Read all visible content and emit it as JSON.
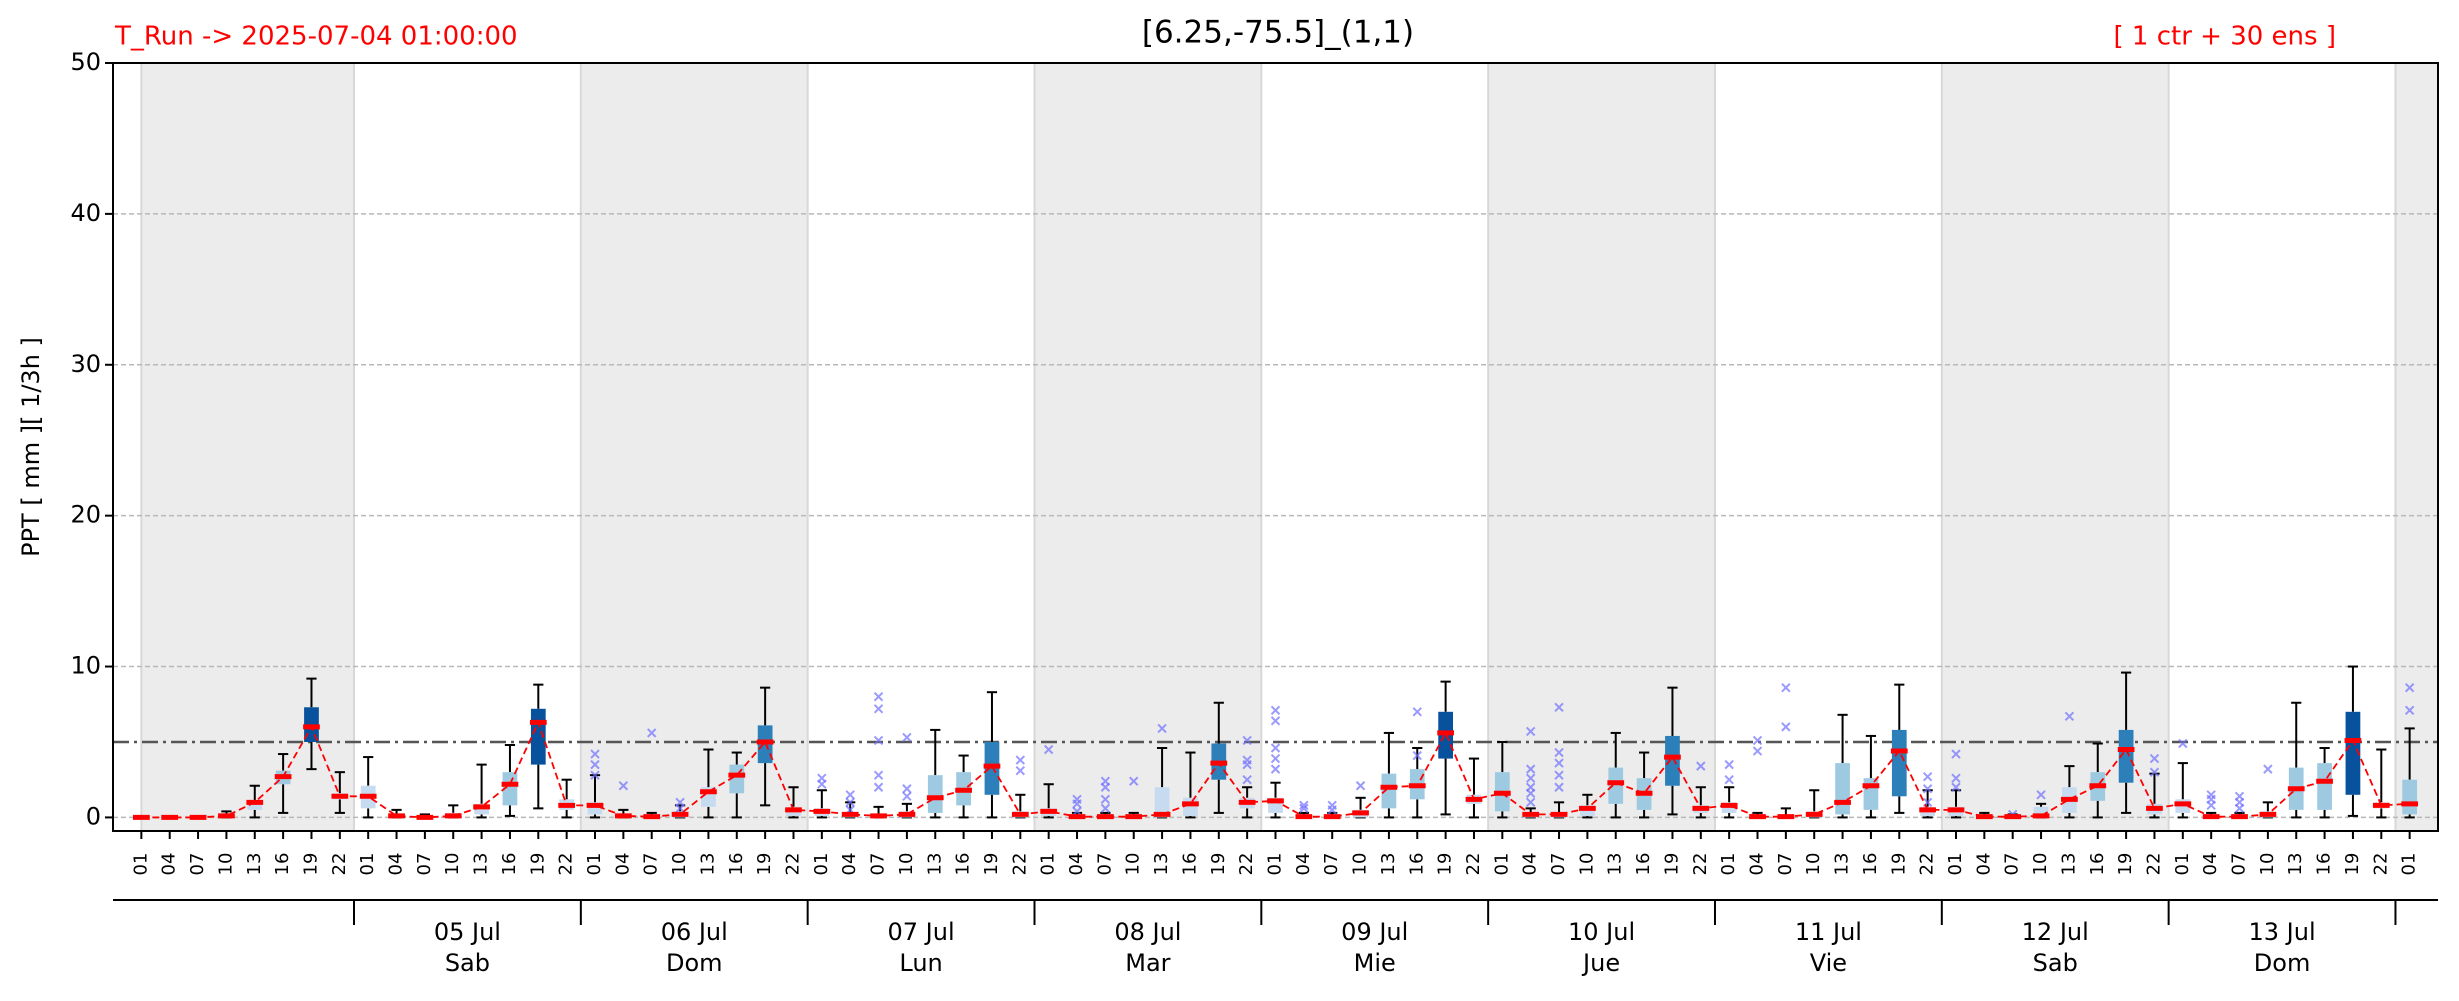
{
  "chart_data": {
    "type": "box",
    "run_label": "T_Run -> 2025-07-04  01:00:00",
    "title": "[6.25,-75.5]_(1,1)",
    "members_label": "[ 1 ctr + 30 ens ]",
    "y_label": "PPT  [ mm ][ 1/3h ]",
    "categories": [
      "01",
      "04",
      "07",
      "10",
      "13",
      "16",
      "19",
      "22",
      "01",
      "04",
      "07",
      "10",
      "13",
      "16",
      "19",
      "22",
      "01",
      "04",
      "07",
      "10",
      "13",
      "16",
      "19",
      "22",
      "01",
      "04",
      "07",
      "10",
      "13",
      "16",
      "19",
      "22",
      "01",
      "04",
      "07",
      "10",
      "13",
      "16",
      "19",
      "22",
      "01",
      "04",
      "07",
      "10",
      "13",
      "16",
      "19",
      "22",
      "01",
      "04",
      "07",
      "10",
      "13",
      "16",
      "19",
      "22",
      "01",
      "04",
      "07",
      "10",
      "13",
      "16",
      "19",
      "22",
      "01",
      "04",
      "07",
      "10",
      "13",
      "16",
      "19",
      "22",
      "01",
      "04",
      "07",
      "10",
      "13",
      "16",
      "19",
      "22",
      "01"
    ],
    "days": [
      {
        "date": "05 Jul",
        "weekday": "Sab"
      },
      {
        "date": "06 Jul",
        "weekday": "Dom"
      },
      {
        "date": "07 Jul",
        "weekday": "Lun"
      },
      {
        "date": "08 Jul",
        "weekday": "Mar"
      },
      {
        "date": "09 Jul",
        "weekday": "Mie"
      },
      {
        "date": "10 Jul",
        "weekday": "Jue"
      },
      {
        "date": "11 Jul",
        "weekday": "Vie"
      },
      {
        "date": "12 Jul",
        "weekday": "Sab"
      },
      {
        "date": "13 Jul",
        "weekday": "Dom"
      }
    ],
    "median": [
      0,
      0,
      0,
      0.1,
      1.0,
      2.7,
      6.0,
      1.4,
      1.4,
      0.1,
      0,
      0.1,
      0.7,
      2.2,
      6.3,
      0.8,
      0.8,
      0.1,
      0.05,
      0.2,
      1.7,
      2.8,
      5.0,
      0.5,
      0.4,
      0.2,
      0.1,
      0.2,
      1.3,
      1.8,
      3.4,
      0.2,
      0.4,
      0.05,
      0.05,
      0.05,
      0.2,
      0.9,
      3.6,
      1.0,
      1.1,
      0.05,
      0.05,
      0.3,
      2.0,
      2.1,
      5.6,
      1.2,
      1.6,
      0.2,
      0.2,
      0.6,
      2.3,
      1.6,
      4.0,
      0.6,
      0.8,
      0.05,
      0.05,
      0.2,
      1.0,
      2.1,
      4.4,
      0.5,
      0.5,
      0.05,
      0.05,
      0.1,
      1.2,
      2.1,
      4.5,
      0.6,
      0.9,
      0.05,
      0.05,
      0.2,
      1.9,
      2.4,
      5.1,
      0.8,
      0.9
    ],
    "q1": [
      0,
      0,
      0,
      0,
      0.5,
      2.2,
      5.0,
      1.2,
      0.6,
      0,
      0,
      0,
      0.2,
      0.8,
      3.5,
      0.5,
      0.2,
      0,
      0,
      0,
      0.7,
      1.6,
      3.6,
      0.1,
      0.1,
      0,
      0,
      0,
      0.3,
      0.8,
      1.5,
      0,
      0.1,
      0,
      0,
      0,
      0,
      0.1,
      2.5,
      0.6,
      0.3,
      0,
      0,
      0,
      0.6,
      1.2,
      3.9,
      0.9,
      0.4,
      0,
      0,
      0.1,
      0.9,
      0.5,
      2.1,
      0.3,
      0.3,
      0,
      0,
      0,
      0.2,
      0.5,
      1.4,
      0.1,
      0.1,
      0,
      0,
      0,
      0.3,
      1.1,
      2.3,
      0.2,
      0.3,
      0,
      0,
      0,
      0.5,
      0.5,
      1.5,
      0.6,
      0.2
    ],
    "q3": [
      0,
      0,
      0,
      0.2,
      1.1,
      3.1,
      7.3,
      1.6,
      2.1,
      0.2,
      0,
      0.3,
      0.9,
      3.0,
      7.2,
      1.2,
      1.0,
      0.2,
      0.1,
      0.4,
      2.0,
      3.5,
      6.1,
      0.7,
      0.6,
      0.3,
      0.2,
      0.4,
      2.8,
      3.0,
      5.0,
      0.4,
      0.6,
      0.1,
      0.1,
      0.1,
      2.0,
      1.3,
      4.9,
      1.3,
      1.3,
      0.1,
      0.1,
      0.5,
      2.9,
      3.2,
      7.0,
      1.5,
      3.0,
      0.3,
      0.3,
      0.8,
      3.3,
      2.6,
      5.4,
      0.8,
      1.0,
      0.1,
      0.1,
      0.4,
      3.6,
      2.6,
      5.8,
      0.7,
      0.7,
      0.1,
      0.1,
      0.7,
      2.0,
      3.0,
      5.8,
      0.9,
      1.2,
      0.1,
      0.1,
      0.4,
      3.3,
      3.6,
      7.0,
      1.0,
      2.5
    ],
    "whisker_low": [
      0,
      0,
      0,
      0,
      0,
      0.3,
      3.2,
      0.3,
      0,
      0,
      0,
      0,
      0,
      0.1,
      0.6,
      0,
      0,
      0,
      0,
      0,
      0,
      0,
      0.8,
      0,
      0,
      0,
      0,
      0,
      0,
      0,
      0,
      0,
      0,
      0,
      0,
      0,
      0,
      0,
      0.3,
      0,
      0,
      0,
      0,
      0,
      0,
      0,
      0.2,
      0,
      0,
      0,
      0,
      0,
      0,
      0,
      0.2,
      0,
      0,
      0,
      0,
      0,
      0,
      0,
      0.3,
      0,
      0,
      0,
      0,
      0,
      0,
      0,
      0.3,
      0,
      0,
      0,
      0,
      0,
      0,
      0,
      0.1,
      0,
      0
    ],
    "whisker_high": [
      0,
      0,
      0,
      0.4,
      2.1,
      4.2,
      9.2,
      3.0,
      4.0,
      0.5,
      0.2,
      0.8,
      3.5,
      4.8,
      8.8,
      2.5,
      2.8,
      0.5,
      0.3,
      0.8,
      4.5,
      4.3,
      8.6,
      2.0,
      1.8,
      1.0,
      0.7,
      0.9,
      5.8,
      4.1,
      8.3,
      1.5,
      2.2,
      0.3,
      0.3,
      0.3,
      4.6,
      4.3,
      7.6,
      2.0,
      2.3,
      0.3,
      0.3,
      1.3,
      5.6,
      4.6,
      9.0,
      3.9,
      5.0,
      0.6,
      1.0,
      1.5,
      5.6,
      4.3,
      8.6,
      2.0,
      2.0,
      0.3,
      0.6,
      1.8,
      6.8,
      5.4,
      8.8,
      1.8,
      1.8,
      0.3,
      0.2,
      0.9,
      3.4,
      4.9,
      9.6,
      2.9,
      3.6,
      0.3,
      0.3,
      1.0,
      7.6,
      4.6,
      10.0,
      4.5,
      5.9
    ],
    "outliers": [
      [],
      [],
      [],
      [],
      [],
      [],
      [],
      [],
      [],
      [],
      [],
      [],
      [],
      [],
      [],
      [],
      [
        2.8,
        3.5,
        4.2
      ],
      [
        2.1
      ],
      [
        5.6
      ],
      [
        0.6,
        1.0
      ],
      [],
      [],
      [],
      [],
      [
        2.2,
        2.6
      ],
      [
        0.5,
        1.0,
        1.5
      ],
      [
        2.0,
        2.8,
        5.1,
        7.2,
        8.0
      ],
      [
        1.4,
        1.9,
        5.3
      ],
      [],
      [],
      [],
      [
        3.1,
        3.8
      ],
      [
        4.5
      ],
      [
        0.4,
        0.9,
        1.2
      ],
      [
        0.6,
        1.2,
        2.0,
        2.4
      ],
      [
        2.4
      ],
      [
        5.9
      ],
      [],
      [],
      [
        2.5,
        3.5,
        3.8,
        5.1
      ],
      [
        3.2,
        3.9,
        4.6,
        6.4,
        7.1
      ],
      [
        0.6,
        0.8
      ],
      [
        0.5,
        0.8
      ],
      [
        2.1
      ],
      [],
      [
        4.1,
        7.0
      ],
      [],
      [],
      [],
      [
        1.0,
        1.6,
        2.0,
        2.6,
        3.2,
        5.7
      ],
      [
        2.0,
        2.8,
        3.6,
        4.3,
        7.3
      ],
      [],
      [],
      [],
      [],
      [
        3.4
      ],
      [
        2.5,
        3.5
      ],
      [
        4.4,
        5.1
      ],
      [
        6.0,
        8.6
      ],
      [],
      [],
      [],
      [],
      [
        1.0,
        1.9,
        2.7
      ],
      [
        2.0,
        2.6,
        4.2
      ],
      [],
      [
        0.2
      ],
      [
        1.5
      ],
      [
        6.7
      ],
      [],
      [],
      [
        3.0,
        3.9
      ],
      [
        4.9
      ],
      [
        0.8,
        1.2,
        1.5
      ],
      [
        0.6,
        1.0,
        1.4
      ],
      [
        3.2
      ],
      [],
      [],
      [],
      [],
      [
        7.1,
        8.6
      ]
    ],
    "box_color_scale": {
      "thresholds": [
        2.5,
        4.5,
        6.5
      ],
      "colors": [
        "#c6dbef",
        "#9ecae1",
        "#2c7fb8",
        "#08519c"
      ]
    },
    "median_color": "#ff0000",
    "outlier_color": "#6f6fff",
    "threshold": 5,
    "ylim": [
      -0.9,
      50
    ],
    "yticks": [
      0,
      10,
      20,
      30,
      40,
      50
    ],
    "grid": true
  }
}
